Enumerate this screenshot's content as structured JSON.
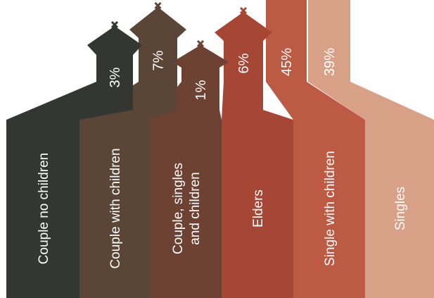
{
  "chart_data": {
    "type": "bar",
    "style": "pictogram-houses",
    "categories": [
      "Couple no children",
      "Couple with children",
      [
        "Couple, singles",
        "and children"
      ],
      "Elders",
      "Single with children",
      "Singles"
    ],
    "values": [
      3,
      7,
      1,
      6,
      45,
      39
    ],
    "value_labels": [
      "3%",
      "7%",
      "1%",
      "6%",
      "45%",
      "39%"
    ],
    "unit": "%",
    "colors": [
      "#343631",
      "#5a4537",
      "#6e4233",
      "#a64635",
      "#bd5a44",
      "#d9a088"
    ],
    "ylim": [
      0,
      45
    ],
    "grid": false,
    "legend": "none"
  }
}
